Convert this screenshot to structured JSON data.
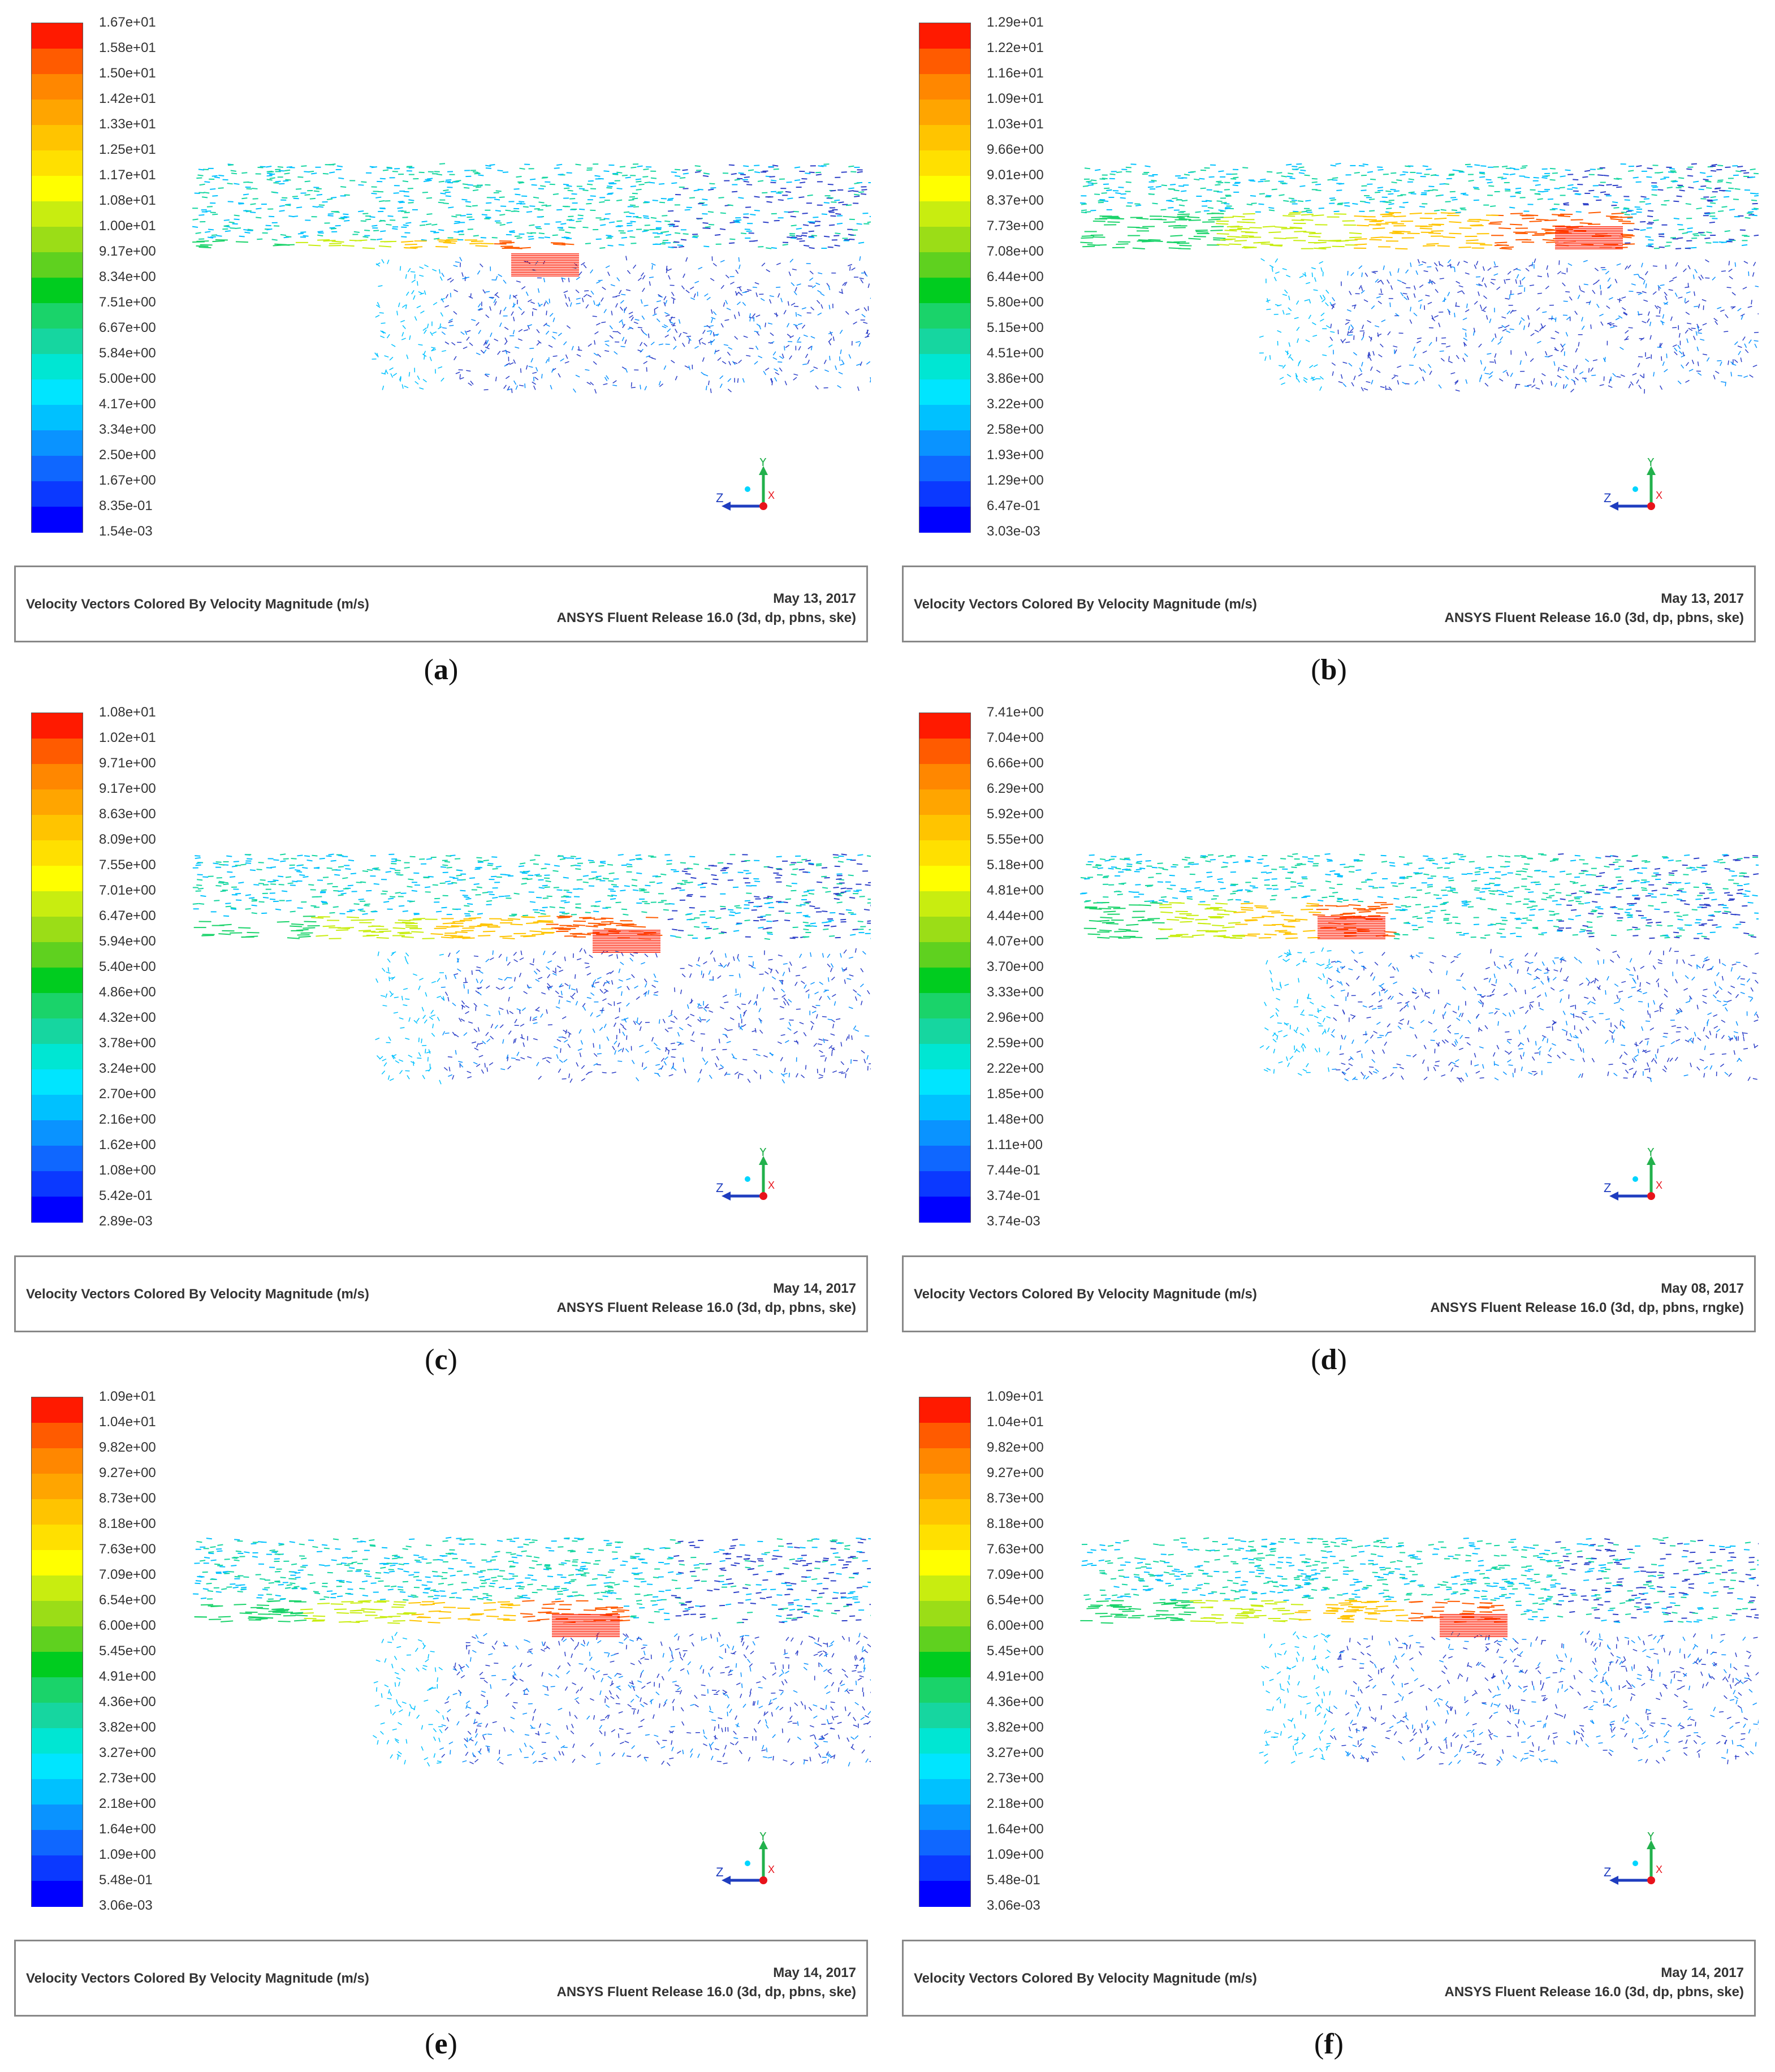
{
  "colorbar_colors": [
    "#0000ff",
    "#0b39ff",
    "#0f67ff",
    "#0a93ff",
    "#00c1ff",
    "#00e5ff",
    "#00e6d3",
    "#16d6a0",
    "#1ad36a",
    "#00cc1f",
    "#5fd11f",
    "#9bdd17",
    "#c8ed10",
    "#ffff00",
    "#ffe000",
    "#ffc400",
    "#ffa500",
    "#ff8700",
    "#ff5b00",
    "#ff1a00"
  ],
  "panels": [
    {
      "caption_letter": "a",
      "legend_labels": [
        "1.67e+01",
        "1.58e+01",
        "1.50e+01",
        "1.42e+01",
        "1.33e+01",
        "1.25e+01",
        "1.17e+01",
        "1.08e+01",
        "1.00e+01",
        "9.17e+00",
        "8.34e+00",
        "7.51e+00",
        "6.67e+00",
        "5.84e+00",
        "5.00e+00",
        "4.17e+00",
        "3.34e+00",
        "2.50e+00",
        "1.67e+00",
        "8.35e-01",
        "1.54e-03"
      ],
      "title": "Velocity Vectors Colored By Velocity Magnitude (m/s)",
      "date": "May 13, 2017",
      "release": "ANSYS Fluent Release 16.0 (3d, dp, pbns, ske)"
    },
    {
      "caption_letter": "b",
      "legend_labels": [
        "1.29e+01",
        "1.22e+01",
        "1.16e+01",
        "1.09e+01",
        "1.03e+01",
        "9.66e+00",
        "9.01e+00",
        "8.37e+00",
        "7.73e+00",
        "7.08e+00",
        "6.44e+00",
        "5.80e+00",
        "5.15e+00",
        "4.51e+00",
        "3.86e+00",
        "3.22e+00",
        "2.58e+00",
        "1.93e+00",
        "1.29e+00",
        "6.47e-01",
        "3.03e-03"
      ],
      "title": "Velocity Vectors Colored By Velocity Magnitude (m/s)",
      "date": "May 13, 2017",
      "release": "ANSYS Fluent Release 16.0 (3d, dp, pbns, ske)"
    },
    {
      "caption_letter": "c",
      "legend_labels": [
        "1.08e+01",
        "1.02e+01",
        "9.71e+00",
        "9.17e+00",
        "8.63e+00",
        "8.09e+00",
        "7.55e+00",
        "7.01e+00",
        "6.47e+00",
        "5.94e+00",
        "5.40e+00",
        "4.86e+00",
        "4.32e+00",
        "3.78e+00",
        "3.24e+00",
        "2.70e+00",
        "2.16e+00",
        "1.62e+00",
        "1.08e+00",
        "5.42e-01",
        "2.89e-03"
      ],
      "title": "Velocity Vectors Colored By Velocity Magnitude (m/s)",
      "date": "May 14, 2017",
      "release": "ANSYS Fluent Release 16.0 (3d, dp, pbns, ske)"
    },
    {
      "caption_letter": "d",
      "legend_labels": [
        "7.41e+00",
        "7.04e+00",
        "6.66e+00",
        "6.29e+00",
        "5.92e+00",
        "5.55e+00",
        "5.18e+00",
        "4.81e+00",
        "4.44e+00",
        "4.07e+00",
        "3.70e+00",
        "3.33e+00",
        "2.96e+00",
        "2.59e+00",
        "2.22e+00",
        "1.85e+00",
        "1.48e+00",
        "1.11e+00",
        "7.44e-01",
        "3.74e-01",
        "3.74e-03"
      ],
      "title": "Velocity Vectors Colored By Velocity Magnitude (m/s)",
      "date": "May 08, 2017",
      "release": "ANSYS Fluent Release 16.0 (3d, dp, pbns, rngke)"
    },
    {
      "caption_letter": "e",
      "legend_labels": [
        "1.09e+01",
        "1.04e+01",
        "9.82e+00",
        "9.27e+00",
        "8.73e+00",
        "8.18e+00",
        "7.63e+00",
        "7.09e+00",
        "6.54e+00",
        "6.00e+00",
        "5.45e+00",
        "4.91e+00",
        "4.36e+00",
        "3.82e+00",
        "3.27e+00",
        "2.73e+00",
        "2.18e+00",
        "1.64e+00",
        "1.09e+00",
        "5.48e-01",
        "3.06e-03"
      ],
      "title": "Velocity Vectors Colored By Velocity Magnitude (m/s)",
      "date": "May 14, 2017",
      "release": "ANSYS Fluent Release 16.0 (3d, dp, pbns, ske)"
    },
    {
      "caption_letter": "f",
      "legend_labels": [
        "1.09e+01",
        "1.04e+01",
        "9.82e+00",
        "9.27e+00",
        "8.73e+00",
        "8.18e+00",
        "7.63e+00",
        "7.09e+00",
        "6.54e+00",
        "6.00e+00",
        "5.45e+00",
        "4.91e+00",
        "4.36e+00",
        "3.82e+00",
        "3.27e+00",
        "2.73e+00",
        "2.18e+00",
        "1.64e+00",
        "1.09e+00",
        "5.48e-01",
        "3.06e-03"
      ],
      "title": "Velocity Vectors Colored By Velocity Magnitude (m/s)",
      "date": "May 14, 2017",
      "release": "ANSYS Fluent Release 16.0 (3d, dp, pbns, ske)"
    }
  ],
  "axis_labels": {
    "y": "Y",
    "z": "Z",
    "x": "X"
  }
}
